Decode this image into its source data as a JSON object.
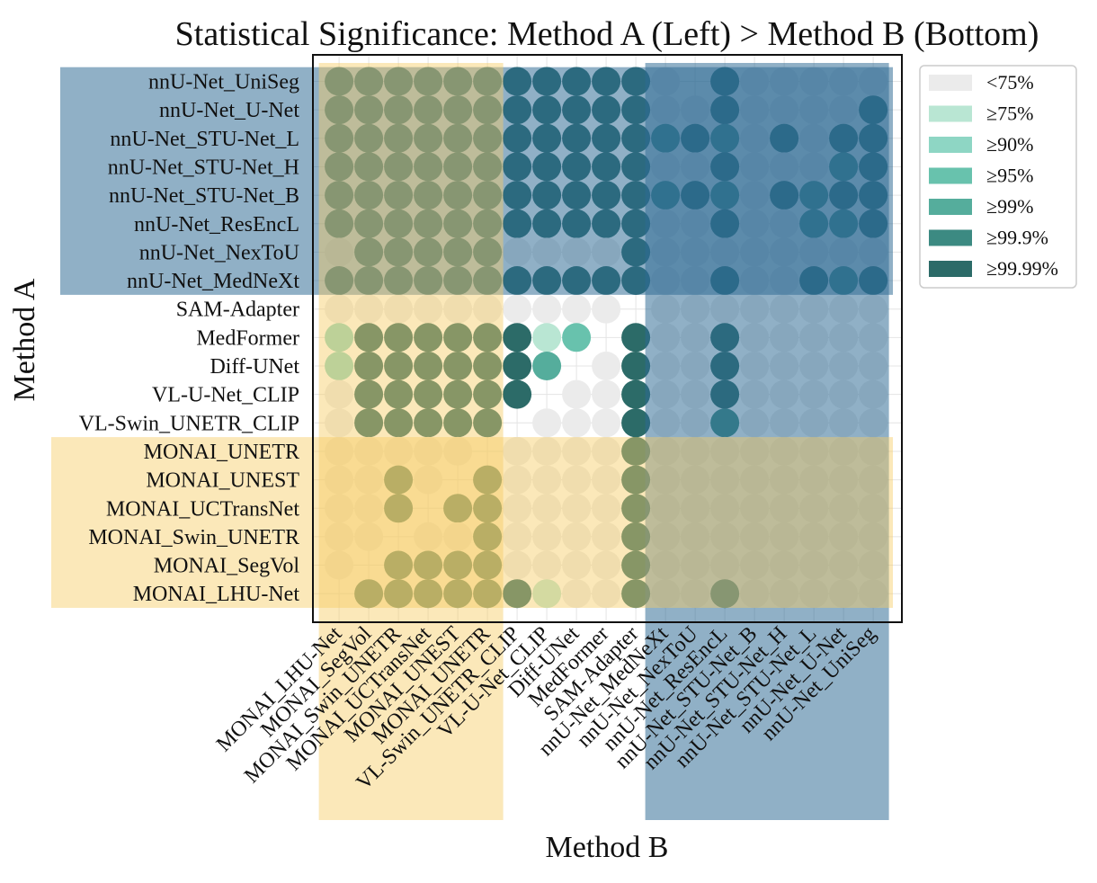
{
  "chart_data": {
    "type": "heatmap",
    "title": "Statistical Significance: Method A (Left) > Method B (Bottom)",
    "xlabel": "Method B",
    "ylabel": "Method A",
    "grid": true,
    "legend_position": "right",
    "rows": [
      "nnU-Net_UniSeg",
      "nnU-Net_U-Net",
      "nnU-Net_STU-Net_L",
      "nnU-Net_STU-Net_H",
      "nnU-Net_STU-Net_B",
      "nnU-Net_ResEncL",
      "nnU-Net_NexToU",
      "nnU-Net_MedNeXt",
      "SAM-Adapter",
      "MedFormer",
      "Diff-UNet",
      "VL-U-Net_CLIP",
      "VL-Swin_UNETR_CLIP",
      "MONAI_UNETR",
      "MONAI_UNEST",
      "MONAI_UCTransNet",
      "MONAI_Swin_UNETR",
      "MONAI_SegVol",
      "MONAI_LHU-Net"
    ],
    "columns": [
      "MONAI_LHU-Net",
      "MONAI_SegVol",
      "MONAI_Swin_UNETR",
      "MONAI_UCTransNet",
      "MONAI_UNEST",
      "MONAI_UNETR",
      "VL-Swin_UNETR_CLIP",
      "VL-U-Net_CLIP",
      "Diff-UNet",
      "MedFormer",
      "SAM-Adapter",
      "nnU-Net_MedNeXt",
      "nnU-Net_NexToU",
      "nnU-Net_ResEncL",
      "nnU-Net_STU-Net_B",
      "nnU-Net_STU-Net_H",
      "nnU-Net_STU-Net_L",
      "nnU-Net_U-Net",
      "nnU-Net_UniSeg"
    ],
    "legend": [
      {
        "label": "<75%",
        "color": "#ebebeb"
      },
      {
        "label": "≥75%",
        "color": "#b9e6d3"
      },
      {
        "label": "≥90%",
        "color": "#8ed6c4"
      },
      {
        "label": "≥95%",
        "color": "#68c2ad"
      },
      {
        "label": "≥99%",
        "color": "#55ad9c"
      },
      {
        "label": "≥99.9%",
        "color": "#3c8a82"
      },
      {
        "label": "≥99.99%",
        "color": "#2c6b68"
      }
    ],
    "level_legend": "significance level index: 0 = <75%, 1 = ≥75%, 2 = ≥90%, 3 = ≥95%, 4 = ≥99%, 5 = ≥99.9%, 6 = ≥99.99%; null = empty cell",
    "values": [
      [
        6,
        6,
        6,
        6,
        6,
        6,
        6,
        6,
        6,
        6,
        6,
        0,
        null,
        6,
        0,
        0,
        0,
        0,
        0
      ],
      [
        6,
        6,
        6,
        6,
        6,
        6,
        6,
        6,
        6,
        6,
        6,
        0,
        0,
        6,
        0,
        0,
        0,
        0,
        6
      ],
      [
        6,
        6,
        6,
        6,
        6,
        6,
        6,
        6,
        6,
        6,
        6,
        5,
        6,
        5,
        0,
        6,
        0,
        6,
        6
      ],
      [
        6,
        6,
        6,
        6,
        6,
        6,
        6,
        6,
        6,
        6,
        6,
        0,
        0,
        6,
        0,
        0,
        0,
        5,
        6
      ],
      [
        6,
        6,
        6,
        6,
        6,
        6,
        6,
        6,
        6,
        6,
        6,
        5,
        6,
        5,
        0,
        6,
        5,
        6,
        6
      ],
      [
        6,
        6,
        6,
        6,
        6,
        6,
        6,
        6,
        6,
        6,
        6,
        0,
        0,
        6,
        0,
        0,
        5,
        5,
        6
      ],
      [
        0,
        6,
        6,
        6,
        6,
        6,
        0,
        0,
        0,
        0,
        6,
        0,
        0,
        0,
        0,
        0,
        0,
        0,
        0
      ],
      [
        6,
        6,
        6,
        6,
        6,
        6,
        6,
        6,
        6,
        6,
        6,
        0,
        0,
        6,
        0,
        0,
        6,
        5,
        6
      ],
      [
        0,
        0,
        0,
        0,
        0,
        0,
        0,
        0,
        0,
        0,
        null,
        0,
        0,
        0,
        0,
        0,
        0,
        0,
        0
      ],
      [
        2,
        6,
        6,
        6,
        6,
        6,
        6,
        1,
        3,
        null,
        6,
        0,
        0,
        6,
        0,
        0,
        0,
        0,
        0
      ],
      [
        2,
        6,
        6,
        6,
        6,
        6,
        6,
        4,
        null,
        0,
        6,
        0,
        0,
        6,
        0,
        0,
        0,
        0,
        0
      ],
      [
        0,
        6,
        6,
        6,
        6,
        6,
        6,
        null,
        0,
        0,
        6,
        0,
        0,
        6,
        0,
        0,
        0,
        0,
        0
      ],
      [
        0,
        6,
        6,
        6,
        6,
        6,
        null,
        0,
        0,
        0,
        6,
        0,
        0,
        5,
        0,
        0,
        0,
        0,
        0
      ],
      [
        0,
        0,
        0,
        0,
        0,
        null,
        0,
        0,
        0,
        0,
        6,
        0,
        0,
        0,
        0,
        0,
        0,
        0,
        0
      ],
      [
        0,
        0,
        6,
        0,
        null,
        6,
        0,
        0,
        0,
        0,
        6,
        0,
        0,
        0,
        0,
        0,
        0,
        0,
        0
      ],
      [
        0,
        0,
        6,
        null,
        6,
        6,
        0,
        0,
        0,
        0,
        6,
        0,
        0,
        0,
        0,
        0,
        0,
        0,
        0
      ],
      [
        0,
        0,
        null,
        0,
        0,
        6,
        0,
        0,
        0,
        0,
        6,
        0,
        0,
        0,
        0,
        0,
        0,
        0,
        0
      ],
      [
        0,
        null,
        6,
        6,
        6,
        6,
        0,
        0,
        0,
        0,
        6,
        0,
        0,
        0,
        0,
        0,
        0,
        0,
        0
      ],
      [
        null,
        6,
        6,
        6,
        6,
        6,
        6,
        1,
        0,
        0,
        6,
        0,
        0,
        6,
        0,
        0,
        0,
        0,
        0
      ]
    ],
    "highlight_groups": [
      {
        "name": "nnU-Net",
        "color": "#2e6a94",
        "opacity": 0.53,
        "rows": [
          0,
          7
        ],
        "columns": [
          11,
          18
        ]
      },
      {
        "name": "MONAI",
        "color": "#f7cd63",
        "opacity": 0.45,
        "rows": [
          13,
          18
        ],
        "columns": [
          0,
          5
        ]
      }
    ]
  }
}
